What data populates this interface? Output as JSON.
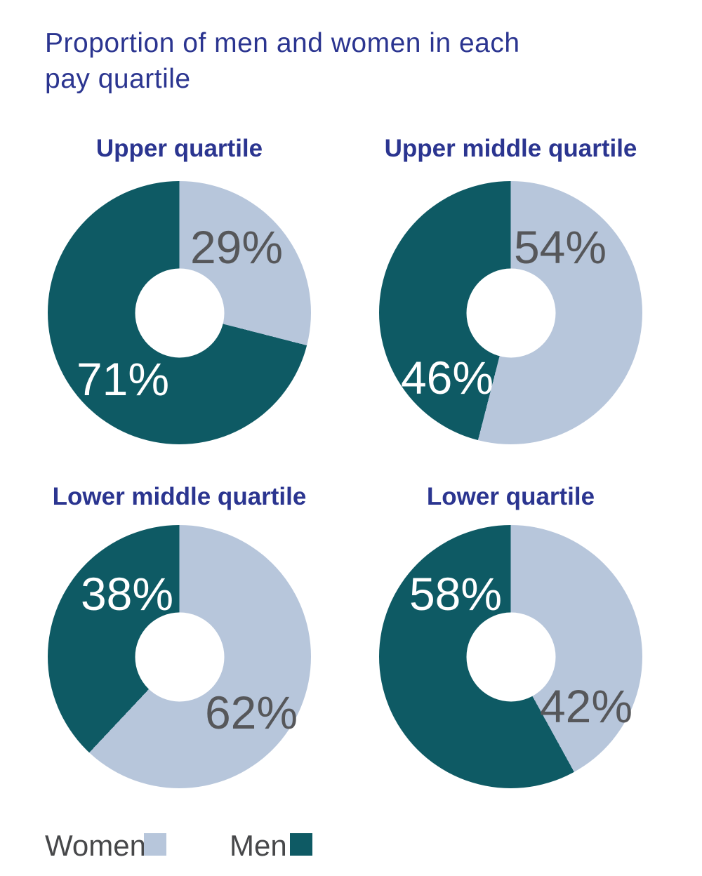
{
  "page": {
    "title": "Proportion of men and women in each pay quartile"
  },
  "colors": {
    "women": "#b7c6db",
    "men": "#0e5a64",
    "navy": "#2b3590",
    "label_gray": "#56575a",
    "legend_gray": "#47484a"
  },
  "legend": {
    "women_label": "Women",
    "men_label": "Men"
  },
  "chart_data": {
    "type": "pie",
    "variant": "donut",
    "title": "Proportion of men and women in each pay quartile",
    "legend_entries": [
      "Women",
      "Men"
    ],
    "legend_position": "bottom-left",
    "start_angle": "top",
    "direction": "clockwise",
    "slice_order": [
      "Women",
      "Men"
    ],
    "charts": [
      {
        "title": "Upper quartile",
        "women_pct": 29,
        "men_pct": 71,
        "women_label": "29%",
        "men_label": "71%"
      },
      {
        "title": "Upper middle quartile",
        "women_pct": 54,
        "men_pct": 46,
        "women_label": "54%",
        "men_label": "46%"
      },
      {
        "title": "Lower middle quartile",
        "women_pct": 62,
        "men_pct": 38,
        "women_label": "62%",
        "men_label": "38%"
      },
      {
        "title": "Lower quartile",
        "women_pct": 42,
        "men_pct": 58,
        "women_label": "42%",
        "men_label": "58%"
      }
    ]
  }
}
